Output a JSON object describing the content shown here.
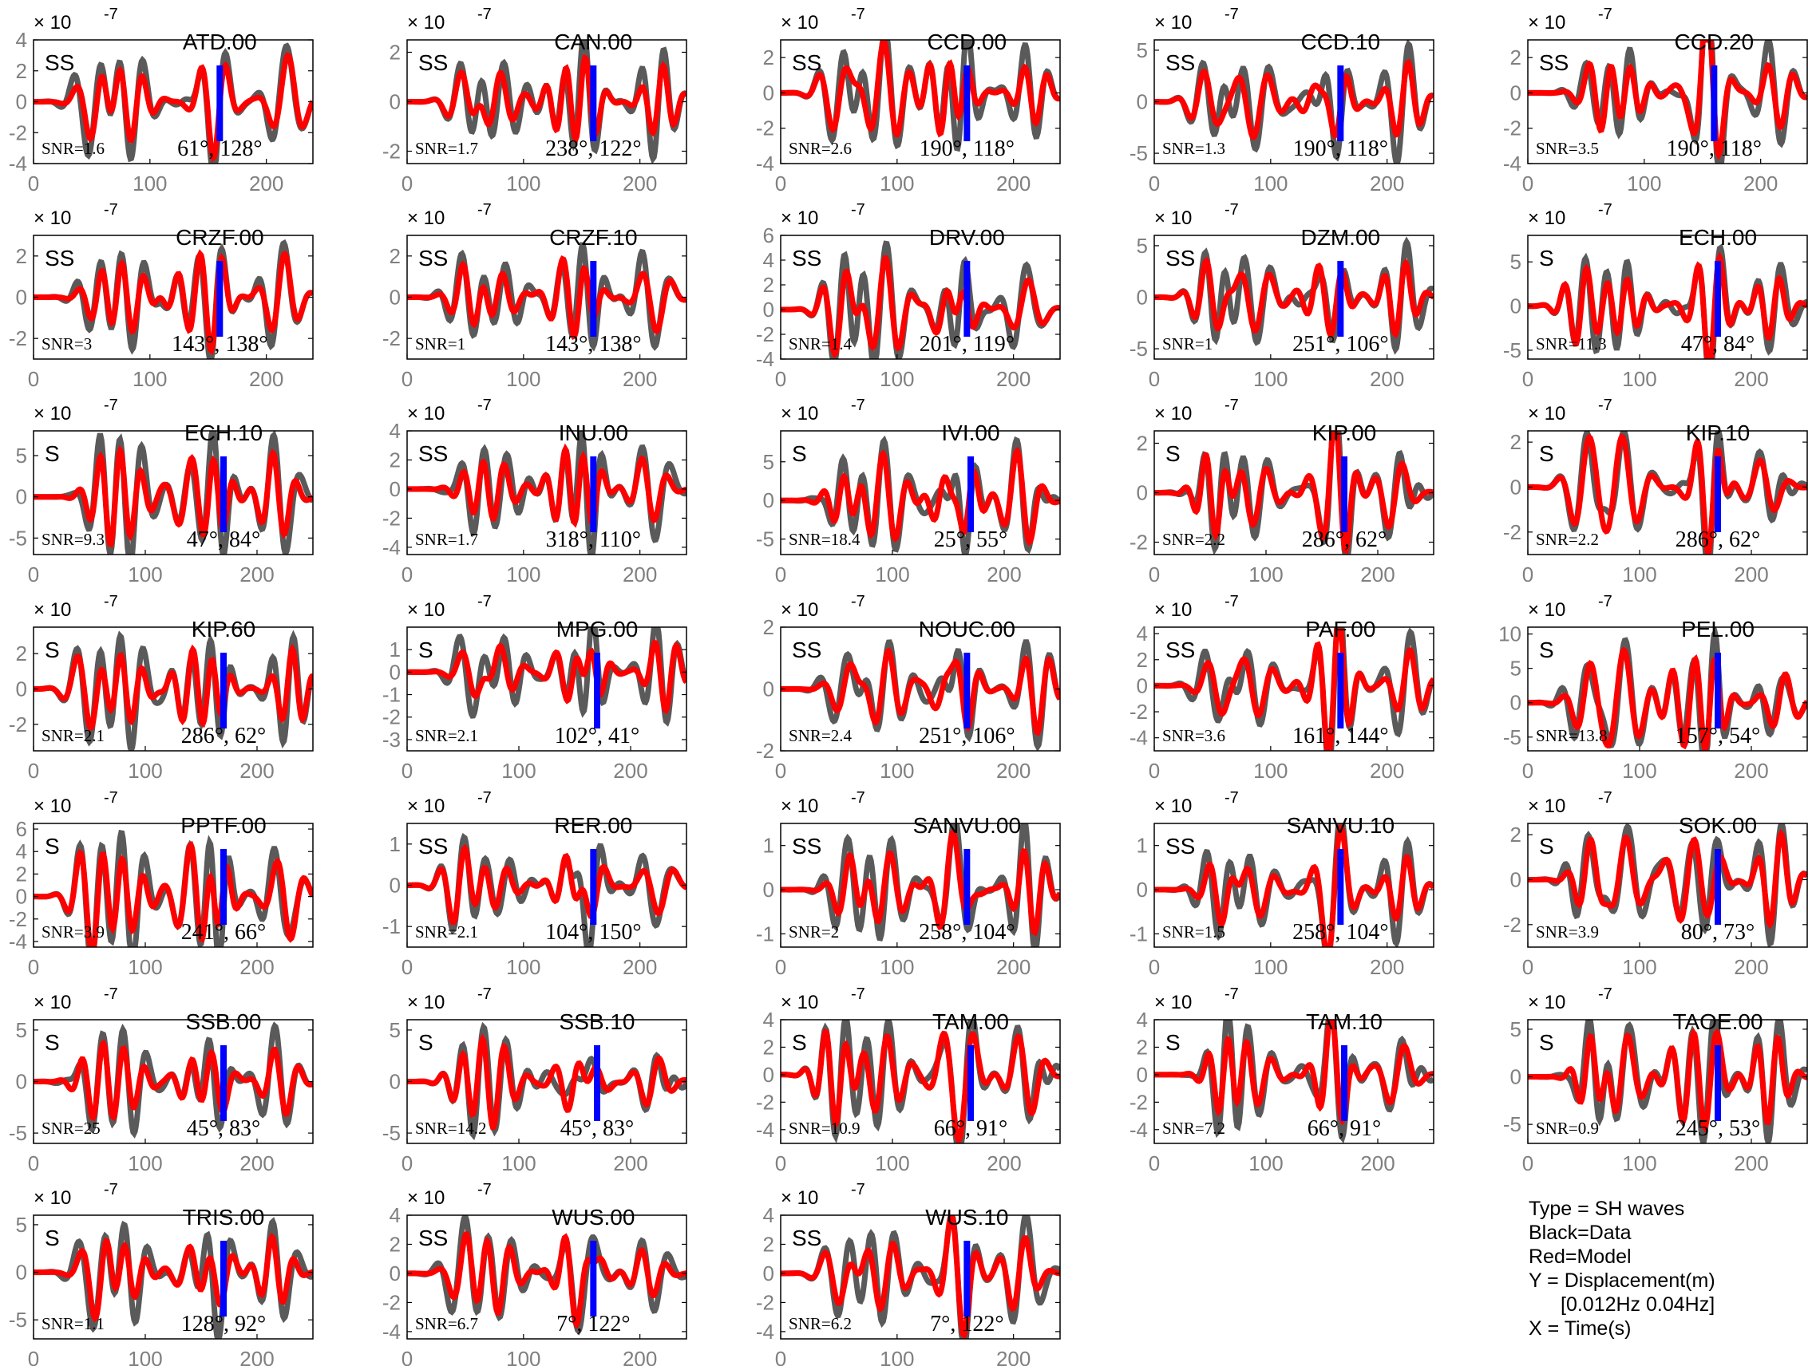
{
  "figure": {
    "exponent_label": "× 10",
    "exponent_power": "-7",
    "colors": {
      "data": "#5a5a5a",
      "model": "#ff0000",
      "marker": "#0000ff",
      "axis": "#000000",
      "tick": "#808080"
    }
  },
  "legend": {
    "type": "Type = SH waves",
    "black": "Black=Data",
    "red": "Red=Model",
    "y": "Y = Displacement(m)",
    "band": "[0.012Hz 0.04Hz]",
    "x": "X = Time(s)"
  },
  "chart_data": [
    {
      "type": "line",
      "station": "ATD.00",
      "phase": "SS",
      "snr": "SNR=1.6",
      "angles": "61°, 128°",
      "xlim": [
        0,
        240
      ],
      "xticks": [
        0,
        100,
        200
      ],
      "ylim": [
        -4,
        4
      ],
      "yticks": [
        4,
        2,
        0,
        -2,
        -4
      ],
      "marker_x": 160,
      "seed": 1
    },
    {
      "type": "line",
      "station": "CAN.00",
      "phase": "SS",
      "snr": "SNR=1.7",
      "angles": "238°, 122°",
      "xlim": [
        0,
        240
      ],
      "xticks": [
        0,
        100,
        200
      ],
      "ylim": [
        -2.5,
        2.5
      ],
      "yticks": [
        2,
        0,
        -2
      ],
      "marker_x": 160,
      "seed": 2
    },
    {
      "type": "line",
      "station": "CCD.00",
      "phase": "SS",
      "snr": "SNR=2.6",
      "angles": "190°, 118°",
      "xlim": [
        0,
        240
      ],
      "xticks": [
        0,
        100,
        200
      ],
      "ylim": [
        -4,
        3
      ],
      "yticks": [
        2,
        0,
        -2,
        -4
      ],
      "marker_x": 160,
      "seed": 3
    },
    {
      "type": "line",
      "station": "CCD.10",
      "phase": "SS",
      "snr": "SNR=1.3",
      "angles": "190°, 118°",
      "xlim": [
        0,
        240
      ],
      "xticks": [
        0,
        100,
        200
      ],
      "ylim": [
        -6,
        6
      ],
      "yticks": [
        5,
        0,
        -5
      ],
      "marker_x": 160,
      "seed": 4
    },
    {
      "type": "line",
      "station": "CCD.20",
      "phase": "SS",
      "snr": "SNR=3.5",
      "angles": "190°, 118°",
      "xlim": [
        0,
        240
      ],
      "xticks": [
        0,
        100,
        200
      ],
      "ylim": [
        -4,
        3
      ],
      "yticks": [
        2,
        0,
        -2,
        -4
      ],
      "marker_x": 160,
      "seed": 5
    },
    {
      "type": "line",
      "station": "CRZF.00",
      "phase": "SS",
      "snr": "SNR=3",
      "angles": "143°, 138°",
      "xlim": [
        0,
        240
      ],
      "xticks": [
        0,
        100,
        200
      ],
      "ylim": [
        -3,
        3
      ],
      "yticks": [
        2,
        0,
        -2
      ],
      "marker_x": 160,
      "seed": 6
    },
    {
      "type": "line",
      "station": "CRZF.10",
      "phase": "SS",
      "snr": "SNR=1",
      "angles": "143°, 138°",
      "xlim": [
        0,
        240
      ],
      "xticks": [
        0,
        100,
        200
      ],
      "ylim": [
        -3,
        3
      ],
      "yticks": [
        2,
        0,
        -2
      ],
      "marker_x": 160,
      "seed": 7
    },
    {
      "type": "line",
      "station": "DRV.00",
      "phase": "SS",
      "snr": "SNR=1.4",
      "angles": "201°, 119°",
      "xlim": [
        0,
        240
      ],
      "xticks": [
        0,
        100,
        200
      ],
      "ylim": [
        -4,
        6
      ],
      "yticks": [
        6,
        4,
        2,
        0,
        -2,
        -4
      ],
      "marker_x": 160,
      "seed": 8
    },
    {
      "type": "line",
      "station": "DZM.00",
      "phase": "SS",
      "snr": "SNR=1",
      "angles": "251°, 106°",
      "xlim": [
        0,
        240
      ],
      "xticks": [
        0,
        100,
        200
      ],
      "ylim": [
        -6,
        6
      ],
      "yticks": [
        5,
        0,
        -5
      ],
      "marker_x": 160,
      "seed": 9
    },
    {
      "type": "line",
      "station": "ECH.00",
      "phase": "S",
      "snr": "SNR=11.3",
      "angles": "47°, 84°",
      "xlim": [
        0,
        250
      ],
      "xticks": [
        0,
        100,
        200
      ],
      "ylim": [
        -6,
        8
      ],
      "yticks": [
        5,
        0,
        -5
      ],
      "marker_x": 170,
      "seed": 10
    },
    {
      "type": "line",
      "station": "ECH.10",
      "phase": "S",
      "snr": "SNR=9.3",
      "angles": "47°, 84°",
      "xlim": [
        0,
        250
      ],
      "xticks": [
        0,
        100,
        200
      ],
      "ylim": [
        -7,
        8
      ],
      "yticks": [
        5,
        0,
        -5
      ],
      "marker_x": 170,
      "seed": 11
    },
    {
      "type": "line",
      "station": "INU.00",
      "phase": "SS",
      "snr": "SNR=1.7",
      "angles": "318°, 110°",
      "xlim": [
        0,
        240
      ],
      "xticks": [
        0,
        100,
        200
      ],
      "ylim": [
        -4.5,
        4
      ],
      "yticks": [
        4,
        2,
        0,
        -2,
        -4
      ],
      "marker_x": 160,
      "seed": 12
    },
    {
      "type": "line",
      "station": "IVI.00",
      "phase": "S",
      "snr": "SNR=18.4",
      "angles": "25°, 55°",
      "xlim": [
        0,
        250
      ],
      "xticks": [
        0,
        100,
        200
      ],
      "ylim": [
        -7,
        9
      ],
      "yticks": [
        5,
        0,
        -5
      ],
      "marker_x": 170,
      "seed": 13
    },
    {
      "type": "line",
      "station": "KIP.00",
      "phase": "S",
      "snr": "SNR=2.2",
      "angles": "286°, 62°",
      "xlim": [
        0,
        250
      ],
      "xticks": [
        0,
        100,
        200
      ],
      "ylim": [
        -2.5,
        2.5
      ],
      "yticks": [
        2,
        0,
        -2
      ],
      "marker_x": 170,
      "seed": 14
    },
    {
      "type": "line",
      "station": "KIP.10",
      "phase": "S",
      "snr": "SNR=2.2",
      "angles": "286°, 62°",
      "xlim": [
        0,
        250
      ],
      "xticks": [
        0,
        100,
        200
      ],
      "ylim": [
        -3,
        2.5
      ],
      "yticks": [
        2,
        0,
        -2
      ],
      "marker_x": 170,
      "seed": 15
    },
    {
      "type": "line",
      "station": "KIP.60",
      "phase": "S",
      "snr": "SNR=2.1",
      "angles": "286°, 62°",
      "xlim": [
        0,
        250
      ],
      "xticks": [
        0,
        100,
        200
      ],
      "ylim": [
        -3.5,
        3.5
      ],
      "yticks": [
        2,
        0,
        -2
      ],
      "marker_x": 170,
      "seed": 16
    },
    {
      "type": "line",
      "station": "MPG.00",
      "phase": "S",
      "snr": "SNR=2.1",
      "angles": "102°, 41°",
      "xlim": [
        0,
        250
      ],
      "xticks": [
        0,
        100,
        200
      ],
      "ylim": [
        -3.5,
        2
      ],
      "yticks": [
        1,
        0,
        -1,
        -2,
        -3
      ],
      "marker_x": 170,
      "seed": 17
    },
    {
      "type": "line",
      "station": "NOUC.00",
      "phase": "SS",
      "snr": "SNR=2.4",
      "angles": "251°, 106°",
      "xlim": [
        0,
        240
      ],
      "xticks": [
        0,
        100,
        200
      ],
      "ylim": [
        -2,
        2
      ],
      "yticks": [
        2,
        0,
        -2
      ],
      "marker_x": 160,
      "seed": 18
    },
    {
      "type": "line",
      "station": "PAF.00",
      "phase": "SS",
      "snr": "SNR=3.6",
      "angles": "161°, 144°",
      "xlim": [
        0,
        240
      ],
      "xticks": [
        0,
        100,
        200
      ],
      "ylim": [
        -5,
        4.5
      ],
      "yticks": [
        4,
        2,
        0,
        -2,
        -4
      ],
      "marker_x": 160,
      "seed": 19
    },
    {
      "type": "line",
      "station": "PEL.00",
      "phase": "S",
      "snr": "SNR=13.8",
      "angles": "157°, 54°",
      "xlim": [
        0,
        250
      ],
      "xticks": [
        0,
        100,
        200
      ],
      "ylim": [
        -7,
        11
      ],
      "yticks": [
        10,
        5,
        0,
        -5
      ],
      "marker_x": 170,
      "seed": 20
    },
    {
      "type": "line",
      "station": "PPTF.00",
      "phase": "S",
      "snr": "SNR=3.9",
      "angles": "241°, 66°",
      "xlim": [
        0,
        250
      ],
      "xticks": [
        0,
        100,
        200
      ],
      "ylim": [
        -4.5,
        6.5
      ],
      "yticks": [
        6,
        4,
        2,
        0,
        -2,
        -4
      ],
      "marker_x": 170,
      "seed": 21
    },
    {
      "type": "line",
      "station": "RER.00",
      "phase": "SS",
      "snr": "SNR=2.1",
      "angles": "104°, 150°",
      "xlim": [
        0,
        240
      ],
      "xticks": [
        0,
        100,
        200
      ],
      "ylim": [
        -1.5,
        1.5
      ],
      "yticks": [
        1,
        0,
        -1
      ],
      "marker_x": 160,
      "seed": 22
    },
    {
      "type": "line",
      "station": "SANVU.00",
      "phase": "SS",
      "snr": "SNR=2",
      "angles": "258°, 104°",
      "xlim": [
        0,
        240
      ],
      "xticks": [
        0,
        100,
        200
      ],
      "ylim": [
        -1.3,
        1.5
      ],
      "yticks": [
        1,
        0,
        -1
      ],
      "marker_x": 160,
      "seed": 23
    },
    {
      "type": "line",
      "station": "SANVU.10",
      "phase": "SS",
      "snr": "SNR=1.5",
      "angles": "258°, 104°",
      "xlim": [
        0,
        240
      ],
      "xticks": [
        0,
        100,
        200
      ],
      "ylim": [
        -1.3,
        1.5
      ],
      "yticks": [
        1,
        0,
        -1
      ],
      "marker_x": 160,
      "seed": 24
    },
    {
      "type": "line",
      "station": "SOK.00",
      "phase": "S",
      "snr": "SNR=3.9",
      "angles": "80°, 73°",
      "xlim": [
        0,
        250
      ],
      "xticks": [
        0,
        100,
        200
      ],
      "ylim": [
        -3,
        2.5
      ],
      "yticks": [
        2,
        0,
        -2
      ],
      "marker_x": 170,
      "seed": 25
    },
    {
      "type": "line",
      "station": "SSB.00",
      "phase": "S",
      "snr": "SNR=25",
      "angles": "45°, 83°",
      "xlim": [
        0,
        250
      ],
      "xticks": [
        0,
        100,
        200
      ],
      "ylim": [
        -6,
        6
      ],
      "yticks": [
        5,
        0,
        -5
      ],
      "marker_x": 170,
      "seed": 26
    },
    {
      "type": "line",
      "station": "SSB.10",
      "phase": "S",
      "snr": "SNR=14.2",
      "angles": "45°, 83°",
      "xlim": [
        0,
        250
      ],
      "xticks": [
        0,
        100,
        200
      ],
      "ylim": [
        -6,
        6
      ],
      "yticks": [
        5,
        0,
        -5
      ],
      "marker_x": 170,
      "seed": 27
    },
    {
      "type": "line",
      "station": "TAM.00",
      "phase": "S",
      "snr": "SNR=10.9",
      "angles": "66°, 91°",
      "xlim": [
        0,
        250
      ],
      "xticks": [
        0,
        100,
        200
      ],
      "ylim": [
        -5,
        4
      ],
      "yticks": [
        4,
        2,
        0,
        -2,
        -4
      ],
      "marker_x": 170,
      "seed": 28
    },
    {
      "type": "line",
      "station": "TAM.10",
      "phase": "S",
      "snr": "SNR=7.2",
      "angles": "66°, 91°",
      "xlim": [
        0,
        250
      ],
      "xticks": [
        0,
        100,
        200
      ],
      "ylim": [
        -5,
        4
      ],
      "yticks": [
        4,
        2,
        0,
        -2,
        -4
      ],
      "marker_x": 170,
      "seed": 29
    },
    {
      "type": "line",
      "station": "TAOE.00",
      "phase": "S",
      "snr": "SNR=0.9",
      "angles": "245°, 53°",
      "xlim": [
        0,
        250
      ],
      "xticks": [
        0,
        100,
        200
      ],
      "ylim": [
        -7,
        6
      ],
      "yticks": [
        5,
        0,
        -5
      ],
      "marker_x": 170,
      "seed": 30
    },
    {
      "type": "line",
      "station": "TRIS.00",
      "phase": "S",
      "snr": "SNR=1.1",
      "angles": "128°, 92°",
      "xlim": [
        0,
        250
      ],
      "xticks": [
        0,
        100,
        200
      ],
      "ylim": [
        -7,
        6
      ],
      "yticks": [
        5,
        0,
        -5
      ],
      "marker_x": 170,
      "seed": 31
    },
    {
      "type": "line",
      "station": "WUS.00",
      "phase": "SS",
      "snr": "SNR=6.7",
      "angles": "7°, 122°",
      "xlim": [
        0,
        240
      ],
      "xticks": [
        0,
        100,
        200
      ],
      "ylim": [
        -4.5,
        4
      ],
      "yticks": [
        4,
        2,
        0,
        -2,
        -4
      ],
      "marker_x": 160,
      "seed": 32
    },
    {
      "type": "line",
      "station": "WUS.10",
      "phase": "SS",
      "snr": "SNR=6.2",
      "angles": "7°, 122°",
      "xlim": [
        0,
        240
      ],
      "xticks": [
        0,
        100,
        200
      ],
      "ylim": [
        -4.5,
        4
      ],
      "yticks": [
        4,
        2,
        0,
        -2,
        -4
      ],
      "marker_x": 160,
      "seed": 33
    }
  ]
}
